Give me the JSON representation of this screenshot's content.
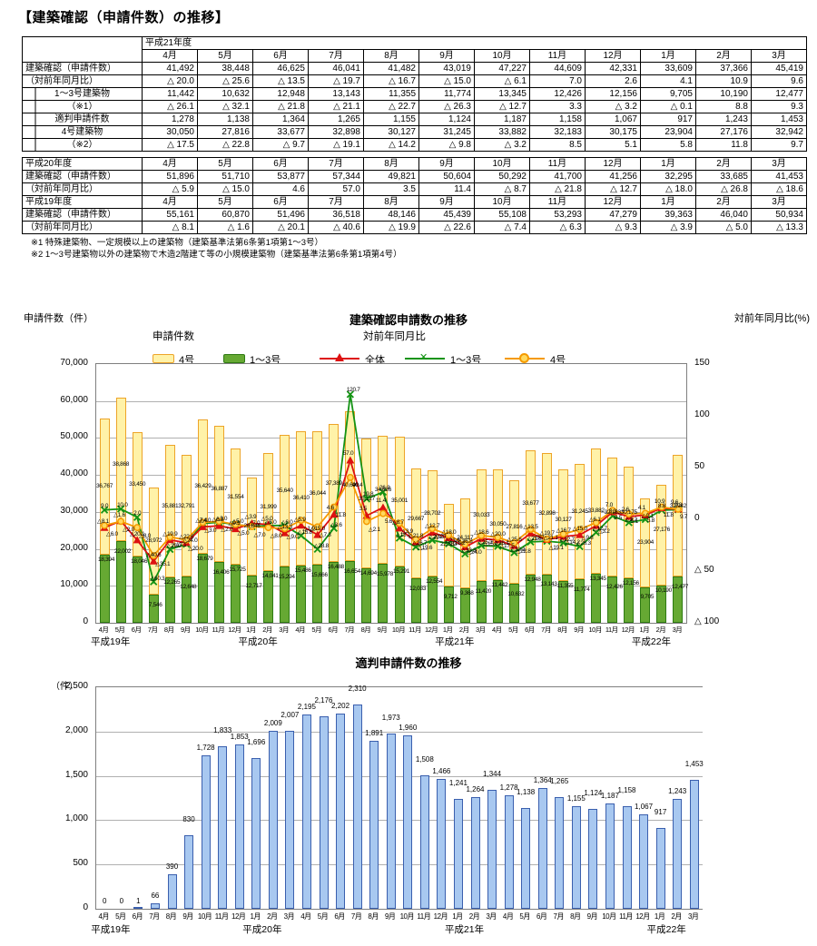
{
  "doc": {
    "title": "【建築確認（申請件数）の推移】"
  },
  "table": {
    "months": [
      "4月",
      "5月",
      "6月",
      "7月",
      "8月",
      "9月",
      "10月",
      "11月",
      "12月",
      "1月",
      "2月",
      "3月"
    ],
    "sections": [
      {
        "year": "平成21年度",
        "rows": [
          {
            "label": "建築確認（申請件数）",
            "style": "lbl",
            "values": [
              "41,492",
              "38,448",
              "46,625",
              "46,041",
              "41,482",
              "43,019",
              "47,227",
              "44,609",
              "42,331",
              "33,609",
              "37,366",
              "45,419"
            ]
          },
          {
            "label": "（対前年同月比）",
            "style": "lbl2",
            "values": [
              "△ 20.0",
              "△ 25.6",
              "△ 13.5",
              "△ 19.7",
              "△ 16.7",
              "△ 15.0",
              "△ 6.1",
              "7.0",
              "2.6",
              "4.1",
              "10.9",
              "9.6"
            ]
          },
          {
            "label": "1～3号建築物",
            "style": "sub",
            "values": [
              "11,442",
              "10,632",
              "12,948",
              "13,143",
              "11,355",
              "11,774",
              "13,345",
              "12,426",
              "12,156",
              "9,705",
              "10,190",
              "12,477"
            ]
          },
          {
            "label": "（※1）",
            "style": "sub",
            "values": [
              "△ 26.1",
              "△ 32.1",
              "△ 21.8",
              "△ 21.1",
              "△ 22.7",
              "△ 26.3",
              "△ 12.7",
              "3.3",
              "△ 3.2",
              "△ 0.1",
              "8.8",
              "9.3"
            ]
          },
          {
            "label": "適判申請件数",
            "style": "sub",
            "values": [
              "1,278",
              "1,138",
              "1,364",
              "1,265",
              "1,155",
              "1,124",
              "1,187",
              "1,158",
              "1,067",
              "917",
              "1,243",
              "1,453"
            ]
          },
          {
            "label": "4号建築物",
            "style": "sub",
            "values": [
              "30,050",
              "27,816",
              "33,677",
              "32,898",
              "30,127",
              "31,245",
              "33,882",
              "32,183",
              "30,175",
              "23,904",
              "27,176",
              "32,942"
            ]
          },
          {
            "label": "（※2）",
            "style": "sub",
            "values": [
              "△ 17.5",
              "△ 22.8",
              "△ 9.7",
              "△ 19.1",
              "△ 14.2",
              "△ 9.8",
              "△ 3.2",
              "8.5",
              "5.1",
              "5.8",
              "11.8",
              "9.7"
            ]
          }
        ]
      },
      {
        "year": "平成20年度",
        "rows": [
          {
            "label": "建築確認（申請件数）",
            "style": "lbl",
            "values": [
              "51,896",
              "51,710",
              "53,877",
              "57,344",
              "49,821",
              "50,604",
              "50,292",
              "41,700",
              "41,256",
              "32,295",
              "33,685",
              "41,453"
            ]
          },
          {
            "label": "（対前年同月比）",
            "style": "lbl2",
            "values": [
              "△ 5.9",
              "△ 15.0",
              "4.6",
              "57.0",
              "3.5",
              "11.4",
              "△ 8.7",
              "△ 21.8",
              "△ 12.7",
              "△ 18.0",
              "△ 26.8",
              "△ 18.6"
            ]
          }
        ]
      },
      {
        "year": "平成19年度",
        "rows": [
          {
            "label": "建築確認（申請件数）",
            "style": "lbl",
            "values": [
              "55,161",
              "60,870",
              "51,496",
              "36,518",
              "48,146",
              "45,439",
              "55,108",
              "53,293",
              "47,279",
              "39,363",
              "46,040",
              "50,934"
            ]
          },
          {
            "label": "（対前年同月比）",
            "style": "lbl2",
            "values": [
              "△ 8.1",
              "△ 1.6",
              "△ 20.1",
              "△ 40.6",
              "△ 19.9",
              "△ 22.6",
              "△ 7.4",
              "△ 6.3",
              "△ 9.3",
              "△ 3.9",
              "△ 5.0",
              "△ 13.3"
            ]
          }
        ]
      }
    ],
    "footnotes": [
      "※1 特殊建築物、一定規模以上の建築物（建築基準法第6条第1項第1～3号）",
      "※2 1～3号建築物以外の建築物で木造2階建て等の小規模建築物（建築基準法第6条第1項第4号）"
    ]
  },
  "chart_data": [
    {
      "type": "bar+line",
      "title": "建築確認申請数の推移",
      "left_axis_label": "申請件数（件）",
      "right_axis_label": "対前年同月比(%)",
      "left_ylim": [
        0,
        70000
      ],
      "right_ylim": [
        -100,
        150
      ],
      "left_yticks": [
        0,
        10000,
        20000,
        30000,
        40000,
        50000,
        60000,
        70000
      ],
      "right_yticks": [
        150,
        100,
        50,
        0,
        -50,
        -100
      ],
      "grid": true,
      "legend": {
        "bars_title": "申請件数",
        "lines_title": "対前年同月比",
        "bar_items": [
          "4号",
          "1～3号"
        ],
        "line_items": [
          "全体",
          "1～3号",
          "4号"
        ]
      },
      "months": [
        "4月",
        "5月",
        "6月",
        "7月",
        "8月",
        "9月",
        "10月",
        "11月",
        "12月",
        "1月",
        "2月",
        "3月",
        "4月",
        "5月",
        "6月",
        "7月",
        "8月",
        "9月",
        "10月",
        "11月",
        "12月",
        "1月",
        "2月",
        "3月",
        "4月",
        "5月",
        "6月",
        "7月",
        "8月",
        "9月",
        "10月",
        "11月",
        "12月",
        "1月",
        "2月",
        "3月"
      ],
      "years": [
        {
          "label": "平成19年",
          "index": 0
        },
        {
          "label": "平成20年",
          "index": 9
        },
        {
          "label": "平成21年",
          "index": 21
        },
        {
          "label": "平成22年",
          "index": 33
        }
      ],
      "bars": {
        "stacked": true,
        "series": [
          {
            "name": "1～3号",
            "color": "#66a933",
            "border": "#2e7a12",
            "values": [
              18394,
              22002,
              18046,
              7546,
              12265,
              12648,
              18679,
              16406,
              15725,
              12717,
              14041,
              15294,
              15486,
              15666,
              16488,
              16654,
              14694,
              15978,
              15291,
              12033,
              12554,
              9712,
              9368,
              11420,
              11442,
              10632,
              12948,
              13143,
              11355,
              11774,
              13345,
              12426,
              12156,
              9705,
              10190,
              12477
            ]
          },
          {
            "name": "4号",
            "color": "#fff2a8",
            "border": "#eda428",
            "values": [
              36767,
              38868,
              33450,
              28972,
              35881,
              32791,
              36429,
              36887,
              31554,
              26646,
              31999,
              35640,
              36410,
              36044,
              37389,
              40690,
              35127,
              34626,
              35001,
              29667,
              28702,
              22583,
              24317,
              30033,
              30050,
              27816,
              33677,
              32898,
              30127,
              31245,
              33882,
              32183,
              30175,
              23904,
              27176,
              32942
            ]
          }
        ]
      },
      "lines": {
        "series": [
          {
            "name": "全体",
            "color": "#dd1111",
            "marker": "triangle",
            "values": [
              -8.1,
              -1.6,
              -20.1,
              -40.6,
              -19.9,
              -22.6,
              -7.4,
              -6.3,
              -9.3,
              -3.9,
              -5.0,
              -13.3,
              -5.9,
              -15.0,
              4.6,
              57.0,
              3.5,
              11.4,
              -8.7,
              -21.8,
              -12.7,
              -18.0,
              -26.8,
              -18.6,
              -20.0,
              -25.6,
              -13.5,
              -19.7,
              -16.7,
              -15.0,
              -6.1,
              7.0,
              2.6,
              4.1,
              10.9,
              9.6
            ]
          },
          {
            "name": "1～3号",
            "color": "#149314",
            "marker": "x",
            "values": [
              9.0,
              10.0,
              2.0,
              -60.3,
              -29.0,
              -24.0,
              -4.0,
              -3.0,
              -5.0,
              -7.0,
              -6.0,
              -6.0,
              -15.8,
              -28.8,
              -8.6,
              120.7,
              19.8,
              26.3,
              -18.1,
              -26.7,
              -20.2,
              -23.6,
              -33.3,
              -25.3,
              -26.1,
              -32.1,
              -21.8,
              -21.1,
              -22.7,
              -26.3,
              -12.7,
              3.3,
              -3.2,
              -0.1,
              8.8,
              9.3
            ]
          },
          {
            "name": "4号",
            "color": "#f59a00",
            "marker": "circle",
            "values": [
              -6.0,
              -2.0,
              -8.0,
              -35.1,
              -17.1,
              -20.0,
              -3.0,
              -2.0,
              -5.0,
              -7.0,
              -8.0,
              -9.0,
              -1.0,
              -7.3,
              11.8,
              40.4,
              -2.1,
              5.6,
              -3.9,
              -19.6,
              -9.0,
              -15.2,
              -24.0,
              -15.7,
              -17.5,
              -22.8,
              -9.7,
              -19.1,
              -14.2,
              -9.8,
              -3.2,
              8.5,
              5.1,
              5.8,
              11.8,
              9.7
            ]
          }
        ]
      }
    },
    {
      "type": "bar",
      "title": "適判申請件数の推移",
      "unit_label": "（件）",
      "ylim": [
        0,
        2500
      ],
      "yticks": [
        0,
        500,
        1000,
        1500,
        2000,
        2500
      ],
      "grid": true,
      "bar_color": "#a8c8f0",
      "bar_border": "#3a5fae",
      "months": [
        "4月",
        "5月",
        "6月",
        "7月",
        "8月",
        "9月",
        "10月",
        "11月",
        "12月",
        "1月",
        "2月",
        "3月",
        "4月",
        "5月",
        "6月",
        "7月",
        "8月",
        "9月",
        "10月",
        "11月",
        "12月",
        "1月",
        "2月",
        "3月",
        "4月",
        "5月",
        "6月",
        "7月",
        "8月",
        "9月",
        "10月",
        "11月",
        "12月",
        "1月",
        "2月",
        "3月"
      ],
      "years": [
        {
          "label": "平成19年",
          "index": 0
        },
        {
          "label": "平成20年",
          "index": 9
        },
        {
          "label": "平成21年",
          "index": 21
        },
        {
          "label": "平成22年",
          "index": 33
        }
      ],
      "values": [
        0,
        0,
        1,
        66,
        390,
        830,
        1728,
        1833,
        1853,
        1696,
        2009,
        2007,
        2195,
        2176,
        2202,
        2310,
        1891,
        1973,
        1960,
        1508,
        1466,
        1241,
        1264,
        1344,
        1278,
        1138,
        1364,
        1265,
        1155,
        1124,
        1187,
        1158,
        1067,
        917,
        1243,
        1453
      ]
    }
  ]
}
